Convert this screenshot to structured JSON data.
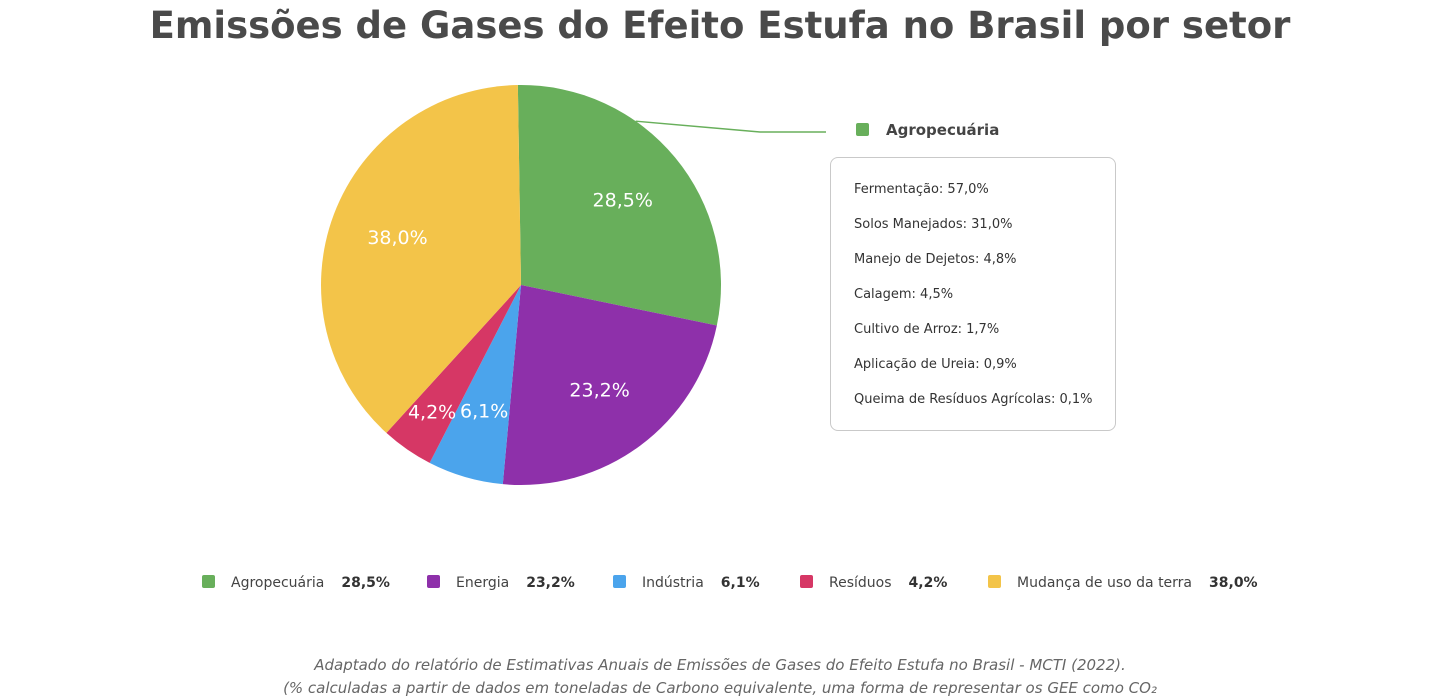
{
  "title": "Emissões de Gases do Efeito Estufa no Brasil por setor",
  "chart_data": {
    "type": "pie",
    "title": "Emissões de Gases do Efeito Estufa no Brasil por setor",
    "unit": "%",
    "categories": [
      "Agropecuária",
      "Energia",
      "Indústria",
      "Resíduos",
      "Mudança de uso da terra"
    ],
    "values": [
      28.5,
      23.2,
      6.1,
      4.2,
      38.0
    ],
    "value_labels": [
      "28,5%",
      "23,2%",
      "6,1%",
      "4,2%",
      "38,0%"
    ],
    "colors": [
      "#68af5b",
      "#8e30aa",
      "#4ba4ec",
      "#d63765",
      "#f3c449"
    ],
    "legend_position": "bottom",
    "callout": {
      "title": "Agropecuária",
      "color": "#68af5b",
      "items": [
        "Fermentação: 57,0%",
        "Solos Manejados: 31,0%",
        "Manejo de Dejetos: 4,8%",
        "Calagem: 4,5%",
        "Cultivo de Arroz: 1,7%",
        "Aplicação de Ureia: 0,9%",
        "Queima de Resíduos Agrícolas: 0,1%"
      ]
    }
  },
  "source": {
    "line1": "Adaptado do relatório de Estimativas Anuais de Emissões de Gases do Efeito Estufa no Brasil - MCTI (2022).",
    "line2": "(% calculadas a partir de dados em toneladas de Carbono equivalente, uma forma de representar os GEE como CO₂"
  }
}
